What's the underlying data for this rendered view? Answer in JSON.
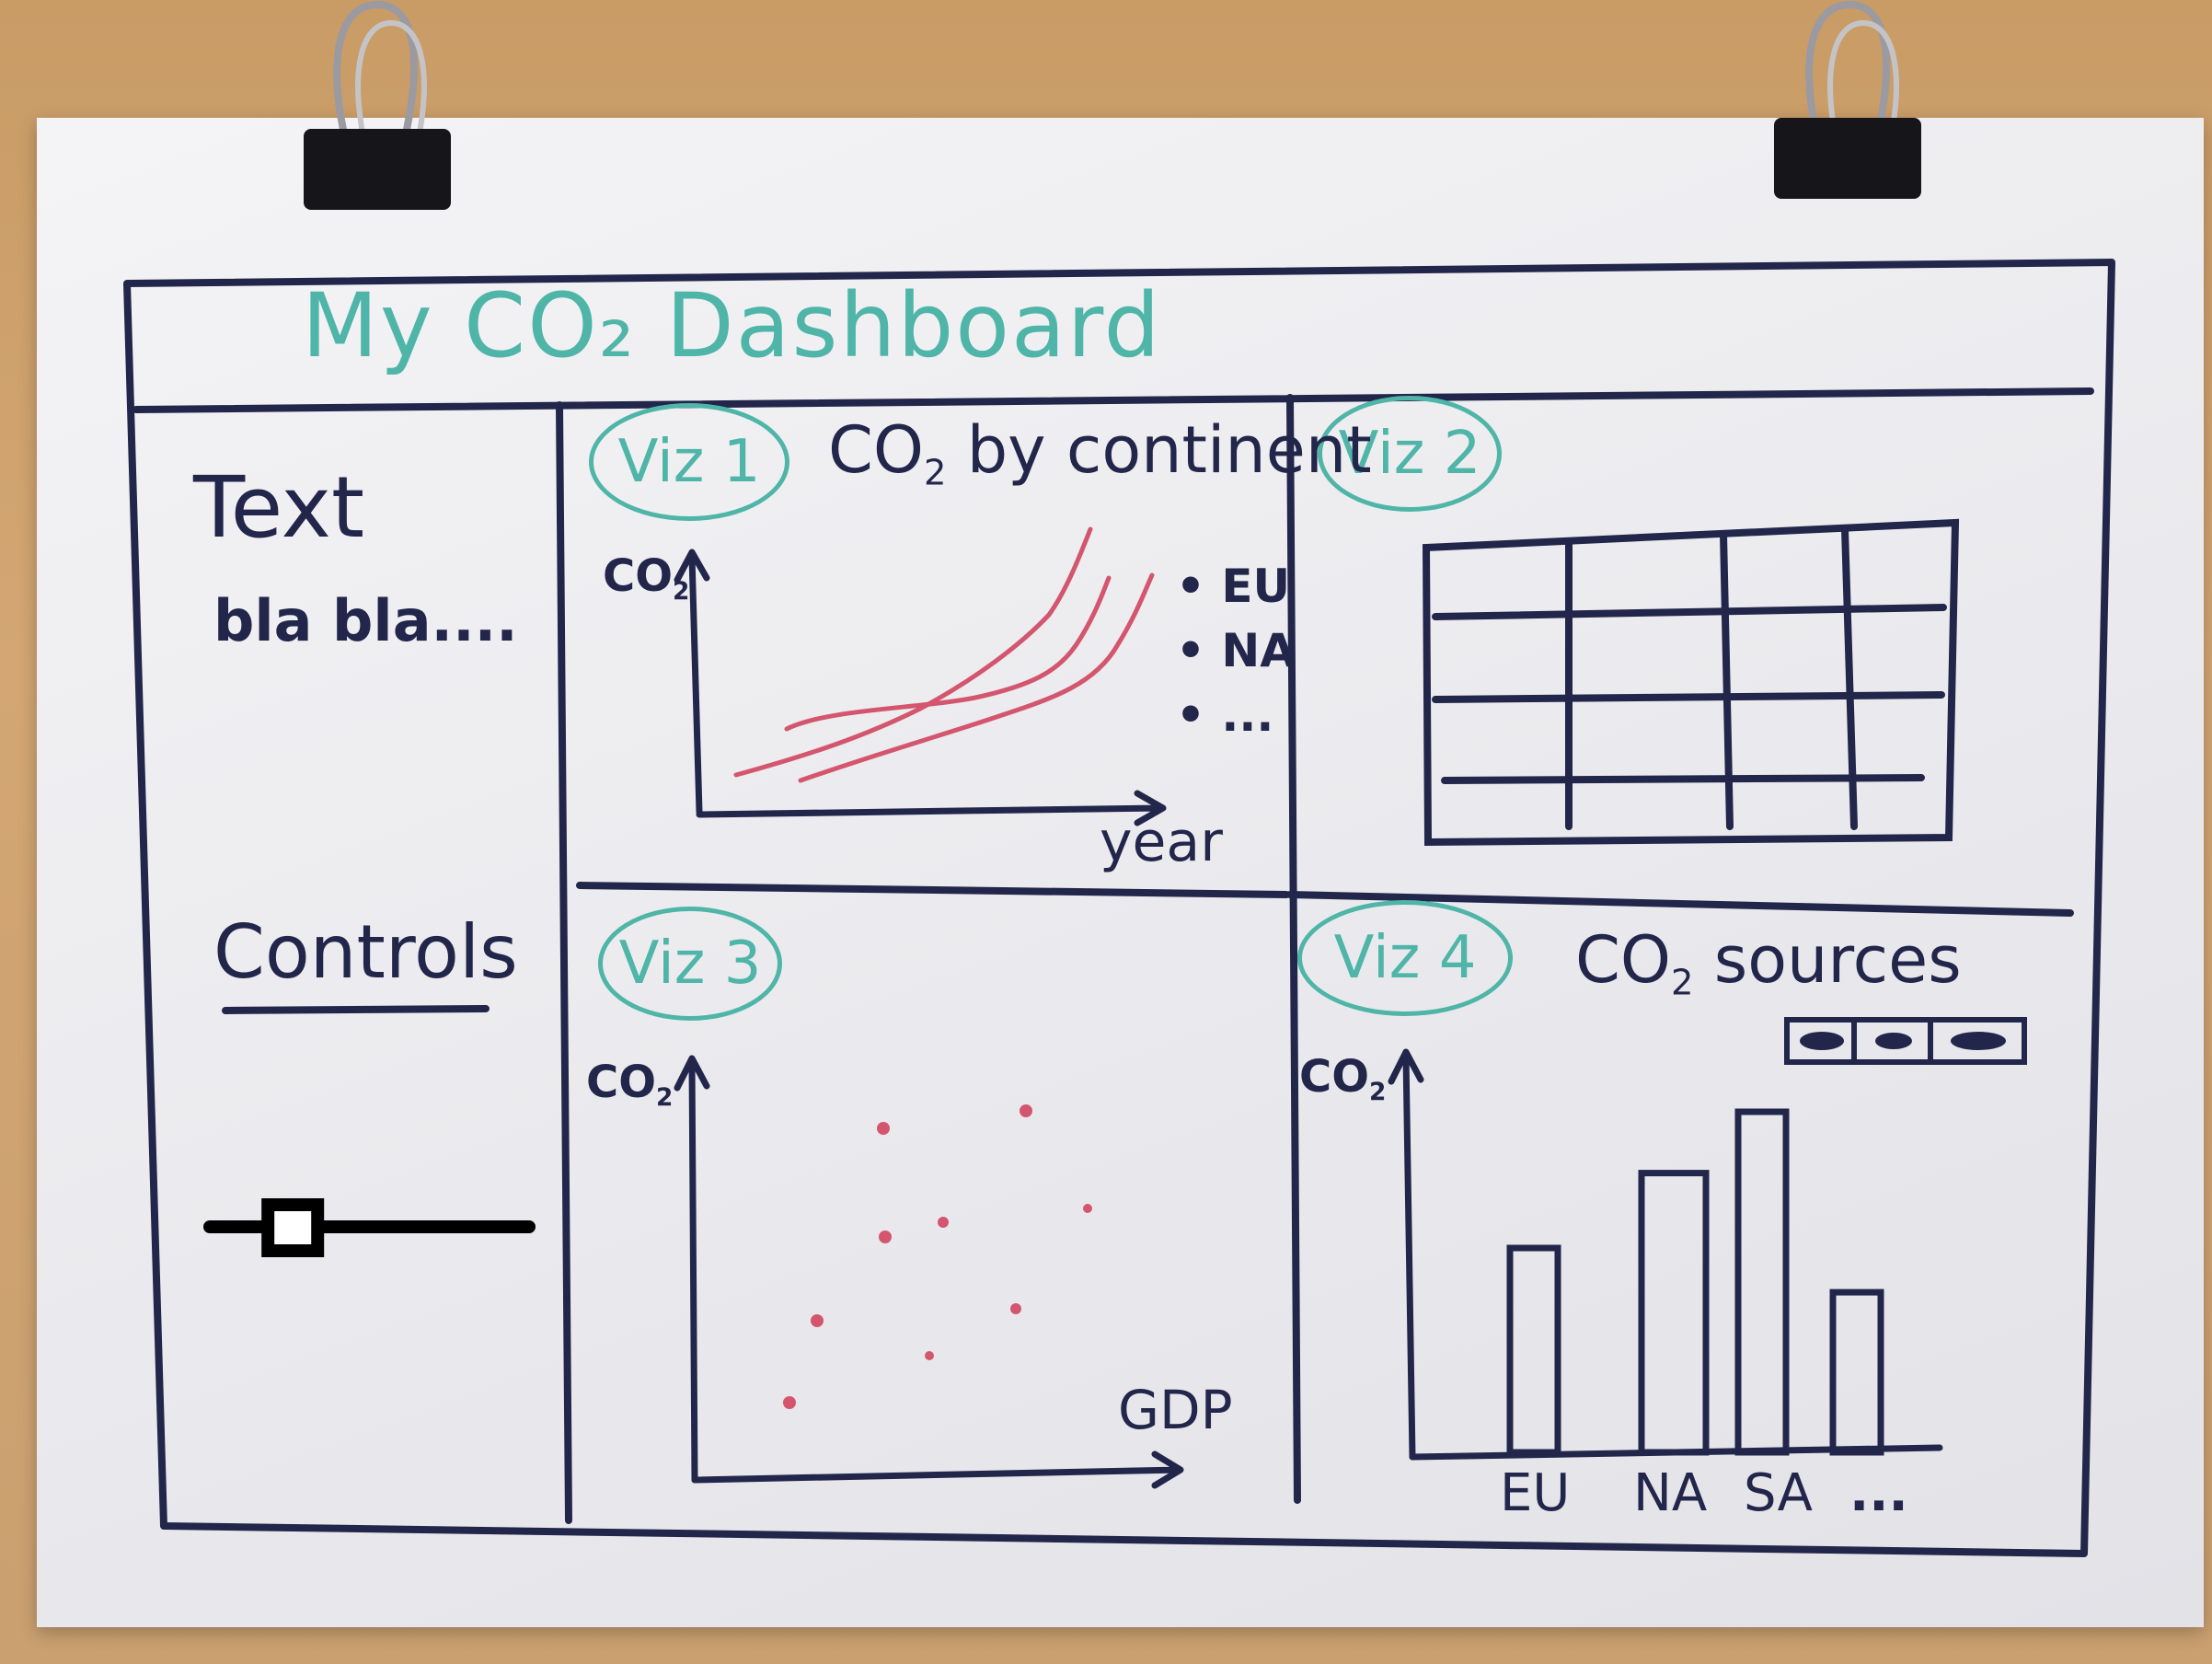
{
  "dashboard": {
    "title": "My CO₂ Dashboard"
  },
  "sidebar": {
    "heading": "Text",
    "body": "bla bla....",
    "controls_label": "Controls",
    "slider": {
      "value_fraction": 0.26
    }
  },
  "viz1": {
    "badge": "Viz 1",
    "title_prefix": "CO",
    "title_sub": "2",
    "title_suffix": " by continent",
    "y_label_prefix": "CO",
    "y_label_sub": "2",
    "x_label": "year",
    "legend": [
      "EU",
      "NA",
      "..."
    ],
    "line_color": "#d4566e"
  },
  "viz2": {
    "badge": "Viz 2",
    "table": {
      "rows": 4,
      "cols": 4
    }
  },
  "viz3": {
    "badge": "Viz 3",
    "y_label_prefix": "CO",
    "y_label_sub": "2",
    "x_label": "GDP",
    "point_color": "#d4566e"
  },
  "viz4": {
    "badge": "Viz 4",
    "title_prefix": "CO",
    "title_sub": "2",
    "title_suffix": " sources",
    "y_label_prefix": "CO",
    "y_label_sub": "2",
    "categories": [
      "EU",
      "NA",
      "SA",
      "..."
    ],
    "values": [
      0.6,
      0.82,
      1.0,
      0.47
    ],
    "toggle_segments": 3
  },
  "colors": {
    "ink": "#22264a",
    "teal": "#4fb5a8",
    "red": "#d4566e",
    "paper": "#efeff2"
  }
}
